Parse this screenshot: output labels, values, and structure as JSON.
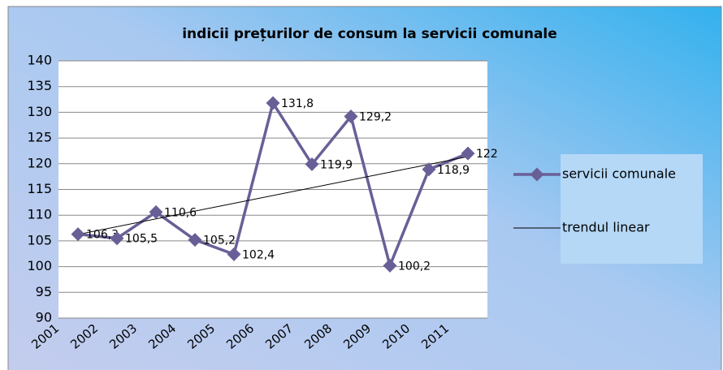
{
  "chart_data": {
    "type": "line",
    "title": "indicii prețurilor de consum la servicii comunale",
    "categories": [
      "2001",
      "2002",
      "2003",
      "2004",
      "2005",
      "2006",
      "2007",
      "2008",
      "2009",
      "2010",
      "2011"
    ],
    "series": [
      {
        "name": "servicii comunale",
        "color": "#695f97",
        "values": [
          106.3,
          105.5,
          110.6,
          105.2,
          102.4,
          131.8,
          119.9,
          129.2,
          100.2,
          118.9,
          122
        ],
        "value_labels": [
          "106,3",
          "105,5",
          "110,6",
          "105,2",
          "102,4",
          "131,8",
          "119,9",
          "129,2",
          "100,2",
          "118,9",
          "122"
        ]
      }
    ],
    "trendline": {
      "name": "trendul linear",
      "color": "#000000"
    },
    "ylim": [
      90,
      140
    ],
    "yticks": [
      90,
      95,
      100,
      105,
      110,
      115,
      120,
      125,
      130,
      135,
      140
    ],
    "grid": true,
    "legend": "right"
  }
}
